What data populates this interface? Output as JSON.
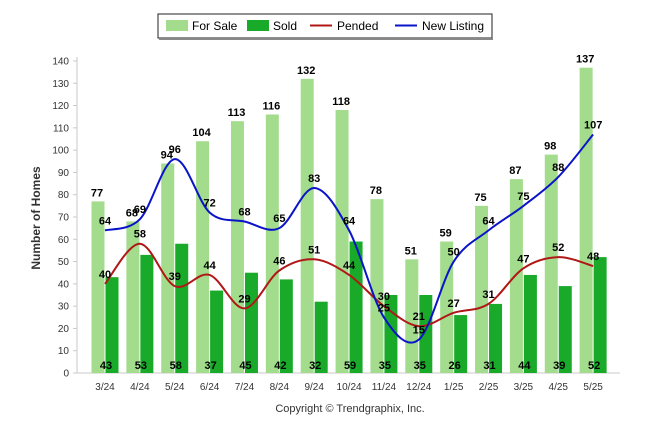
{
  "chart_data": {
    "type": "bar",
    "ylabel": "Number of Homes",
    "xlabel": "",
    "ylim": [
      0,
      140
    ],
    "yticks": [
      0,
      10,
      20,
      30,
      40,
      50,
      60,
      70,
      80,
      90,
      100,
      110,
      120,
      130,
      140
    ],
    "grid": false,
    "legend": "top-center",
    "categories": [
      "3/24",
      "4/24",
      "5/24",
      "6/24",
      "7/24",
      "8/24",
      "9/24",
      "10/24",
      "11/24",
      "12/24",
      "1/25",
      "2/25",
      "3/25",
      "4/25",
      "5/25"
    ],
    "series": [
      {
        "name": "For Sale",
        "kind": "bar",
        "color": "#a3dc8c",
        "values": [
          77,
          68,
          94,
          104,
          113,
          116,
          132,
          118,
          78,
          51,
          59,
          75,
          87,
          98,
          137
        ]
      },
      {
        "name": "Sold",
        "kind": "bar",
        "color": "#1aaa2a",
        "values": [
          43,
          53,
          58,
          37,
          45,
          42,
          32,
          59,
          35,
          35,
          26,
          31,
          44,
          39,
          52
        ]
      },
      {
        "name": "Pended",
        "kind": "line",
        "color": "#b01818",
        "values": [
          40,
          58,
          39,
          44,
          29,
          46,
          51,
          44,
          30,
          21,
          27,
          31,
          47,
          52,
          48
        ]
      },
      {
        "name": "New Listing",
        "kind": "line",
        "color": "#0a14c8",
        "values": [
          64,
          69,
          96,
          72,
          68,
          65,
          83,
          64,
          25,
          15,
          50,
          64,
          75,
          88,
          107
        ]
      }
    ]
  },
  "footer": {
    "copyright": "Copyright © Trendgraphix, Inc."
  }
}
